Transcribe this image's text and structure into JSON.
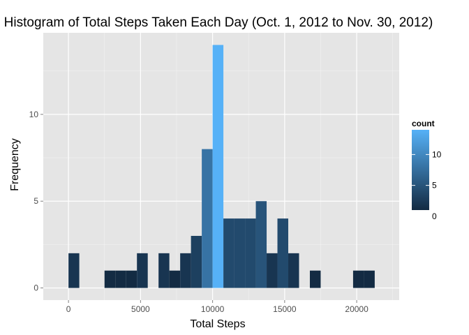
{
  "chart_data": {
    "type": "bar",
    "title": "Histogram of Total Steps Taken Each Day (Oct. 1, 2012 to Nov. 30, 2012)",
    "xlabel": "Total Steps",
    "ylabel": "Frequency",
    "xlim": [
      -1750,
      22950
    ],
    "ylim": [
      -0.7,
      14.7
    ],
    "bin_width": 750,
    "x_ticks": [
      0,
      5000,
      10000,
      15000,
      20000
    ],
    "x_tick_labels": [
      "0",
      "5000",
      "10000",
      "15000",
      "20000"
    ],
    "y_ticks": [
      0,
      5,
      10
    ],
    "y_tick_labels": [
      "0",
      "5",
      "10"
    ],
    "bins": [
      {
        "x0": 0,
        "x1": 750,
        "count": 2
      },
      {
        "x0": 2500,
        "x1": 3250,
        "count": 1
      },
      {
        "x0": 3250,
        "x1": 4000,
        "count": 1
      },
      {
        "x0": 4000,
        "x1": 4750,
        "count": 1
      },
      {
        "x0": 4750,
        "x1": 5500,
        "count": 2
      },
      {
        "x0": 6250,
        "x1": 7000,
        "count": 2
      },
      {
        "x0": 7000,
        "x1": 7750,
        "count": 1
      },
      {
        "x0": 7750,
        "x1": 8500,
        "count": 2
      },
      {
        "x0": 8500,
        "x1": 9250,
        "count": 3
      },
      {
        "x0": 9250,
        "x1": 10000,
        "count": 8
      },
      {
        "x0": 10000,
        "x1": 10750,
        "count": 14
      },
      {
        "x0": 10750,
        "x1": 11500,
        "count": 4
      },
      {
        "x0": 11500,
        "x1": 12250,
        "count": 4
      },
      {
        "x0": 12250,
        "x1": 13000,
        "count": 4
      },
      {
        "x0": 13000,
        "x1": 13750,
        "count": 5
      },
      {
        "x0": 13750,
        "x1": 14500,
        "count": 2
      },
      {
        "x0": 14500,
        "x1": 15250,
        "count": 4
      },
      {
        "x0": 15250,
        "x1": 16000,
        "count": 2
      },
      {
        "x0": 16750,
        "x1": 17500,
        "count": 1
      },
      {
        "x0": 19750,
        "x1": 20500,
        "count": 1
      },
      {
        "x0": 20500,
        "x1": 21250,
        "count": 1
      }
    ],
    "legend": {
      "title": "count",
      "placement": "right",
      "ticks": [
        0,
        5,
        10
      ],
      "tick_labels": [
        "0",
        "5",
        "10"
      ],
      "min": 1,
      "max": 14,
      "color_low": "#132B43",
      "color_high": "#56B1F7"
    },
    "panel_background": "#e5e5e5",
    "grid": true,
    "grid_color": "#ffffff"
  }
}
